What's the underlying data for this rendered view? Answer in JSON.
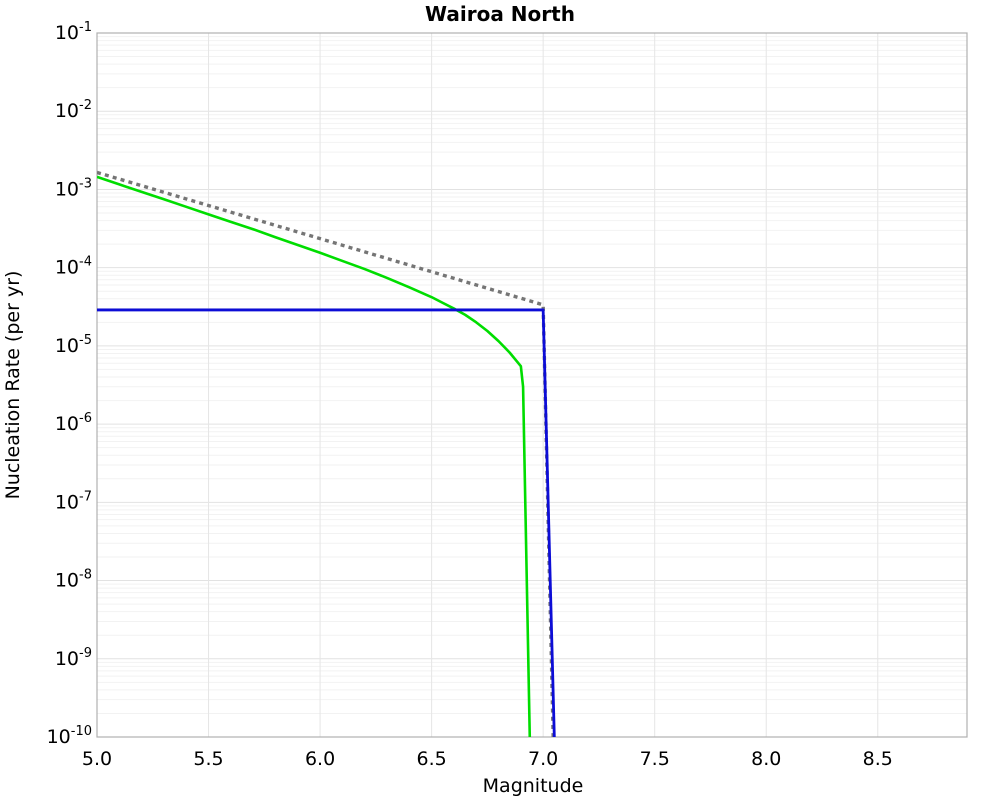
{
  "figure": {
    "background": "#ffffff",
    "plot_background": "#ffffff",
    "border_color": "#b0b0b0",
    "minor_grid_color": "#f2f2f2",
    "major_grid_color": "#e2e2e2",
    "vertical_grid_color": "#e6e6e6"
  },
  "chart_data": {
    "type": "line",
    "title": "Wairoa North",
    "xlabel": "Magnitude",
    "ylabel": "Nucleation Rate (per yr)",
    "xlim": [
      5.0,
      8.9
    ],
    "ylim": [
      1e-10,
      0.1
    ],
    "y_scale": "log",
    "grid": "on",
    "legend": "none",
    "x_axis": {
      "ticks": [
        5.0,
        5.5,
        6.0,
        6.5,
        7.0,
        7.5,
        8.0,
        8.5
      ],
      "tick_labels": [
        "5.0",
        "5.5",
        "6.0",
        "6.5",
        "7.0",
        "7.5",
        "8.0",
        "8.5"
      ]
    },
    "y_axis": {
      "tick_base": "10",
      "tick_exponents": [
        -1,
        -2,
        -3,
        -4,
        -5,
        -6,
        -7,
        -8,
        -9,
        -10
      ]
    },
    "series": [
      {
        "name": "green-tapered-gr-curve",
        "color": "#00dd00",
        "style": "solid",
        "width": 2.6,
        "points": [
          [
            5.0,
            0.00145
          ],
          [
            5.1,
            0.00116
          ],
          [
            5.2,
            0.00093
          ],
          [
            5.3,
            0.00075
          ],
          [
            5.4,
            0.0006
          ],
          [
            5.5,
            0.00048
          ],
          [
            5.6,
            0.000385
          ],
          [
            5.7,
            0.00031
          ],
          [
            5.8,
            0.000245
          ],
          [
            5.9,
            0.000195
          ],
          [
            6.0,
            0.000155
          ],
          [
            6.1,
            0.000122
          ],
          [
            6.2,
            9.6e-05
          ],
          [
            6.3,
            7.4e-05
          ],
          [
            6.4,
            5.6e-05
          ],
          [
            6.5,
            4.2e-05
          ],
          [
            6.55,
            3.55e-05
          ],
          [
            6.6,
            3e-05
          ],
          [
            6.65,
            2.5e-05
          ],
          [
            6.7,
            2e-05
          ],
          [
            6.75,
            1.55e-05
          ],
          [
            6.8,
            1.15e-05
          ],
          [
            6.85,
            8.2e-06
          ],
          [
            6.9,
            5.5e-06
          ],
          [
            6.91,
            3e-06
          ],
          [
            6.94,
            1e-10
          ]
        ]
      },
      {
        "name": "gray-dotted-gr-line",
        "color": "#757575",
        "style": "dotted",
        "width": 3.4,
        "points": [
          [
            5.0,
            0.00165
          ],
          [
            7.0,
            3.35e-05
          ],
          [
            7.045,
            1e-10
          ]
        ]
      },
      {
        "name": "blue-characteristic-line",
        "color": "#0d0dd6",
        "style": "solid",
        "width": 2.8,
        "points": [
          [
            5.0,
            2.88e-05
          ],
          [
            7.0,
            2.88e-05
          ],
          [
            7.05,
            1e-10
          ]
        ]
      }
    ]
  }
}
